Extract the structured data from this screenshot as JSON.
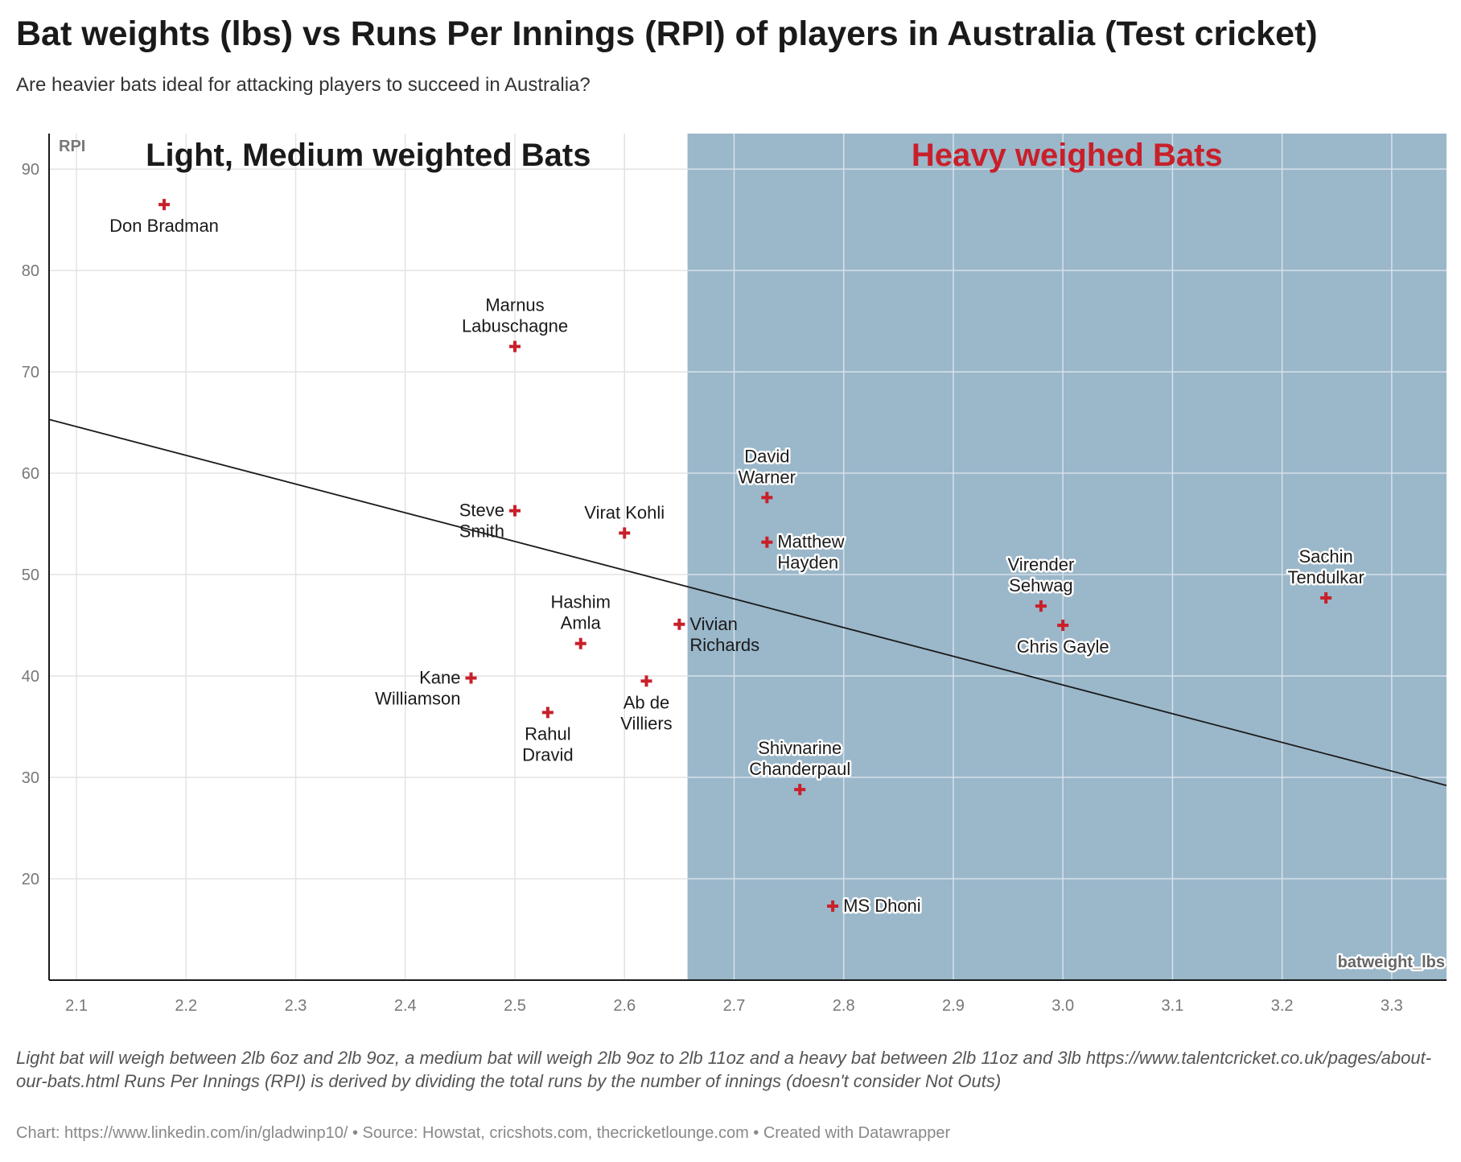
{
  "title": "Bat weights (lbs) vs Runs Per Innings (RPI) of players in Australia (Test cricket)",
  "subtitle": "Are heavier bats ideal for attacking players to succeed in Australia?",
  "notes": "Light bat will weigh between 2lb 6oz and 2lb 9oz, a medium bat will weigh 2lb 9oz to 2lb 11oz and a heavy bat between 2lb 11oz and 3lb https://www.talentcricket.co.uk/pages/about-our-bats.html Runs Per Innings (RPI) is derived by dividing the total runs by the number of innings (doesn't consider Not Outs)",
  "byline": "Chart: https://www.linkedin.com/in/gladwinp10/ • Source: Howstat, cricshots.com, thecricketlounge.com • Created with Datawrapper",
  "colors": {
    "marker": "#c8202a",
    "heavy_region": "#9bb7ca",
    "heavy_label": "#c8202a",
    "light_label": "#1a1a1a",
    "trendline": "#1a1a1a",
    "grid": "#e3e3e3"
  },
  "chart_data": {
    "type": "scatter",
    "xlabel": "batweight_lbs",
    "ylabel": "RPI",
    "xlim": [
      2.075,
      3.35
    ],
    "ylim": [
      10,
      93.5
    ],
    "x_ticks": [
      "2.1",
      "2.2",
      "2.3",
      "2.4",
      "2.5",
      "2.6",
      "2.7",
      "2.8",
      "2.9",
      "3.0",
      "3.1",
      "3.2",
      "3.3"
    ],
    "y_ticks": [
      "20",
      "30",
      "40",
      "50",
      "60",
      "70",
      "80",
      "90"
    ],
    "grid": true,
    "regions": [
      {
        "label": "Light, Medium weighted Bats",
        "x_from": 2.075,
        "x_to": 2.6575,
        "shaded": false
      },
      {
        "label": "Heavy weighed Bats",
        "x_from": 2.6575,
        "x_to": 3.35,
        "shaded": true
      }
    ],
    "trendline": {
      "x": [
        2.075,
        3.35
      ],
      "y": [
        65.3,
        29.2
      ]
    },
    "points": [
      {
        "name": "Don Bradman",
        "x": 2.18,
        "y": 86.5,
        "label_pos": "below"
      },
      {
        "name": "Marnus Labuschagne",
        "x": 2.5,
        "y": 72.5,
        "label_pos": "above"
      },
      {
        "name": "Steve Smith",
        "x": 2.5,
        "y": 56.3,
        "label_pos": "left"
      },
      {
        "name": "Virat Kohli",
        "x": 2.6,
        "y": 54.1,
        "label_pos": "above"
      },
      {
        "name": "Hashim Amla",
        "x": 2.56,
        "y": 43.2,
        "label_pos": "above"
      },
      {
        "name": "Kane Williamson",
        "x": 2.46,
        "y": 39.8,
        "label_pos": "left"
      },
      {
        "name": "Rahul Dravid",
        "x": 2.53,
        "y": 36.4,
        "label_pos": "below"
      },
      {
        "name": "Ab de Villiers",
        "x": 2.62,
        "y": 39.5,
        "label_pos": "below"
      },
      {
        "name": "Vivian Richards",
        "x": 2.65,
        "y": 45.1,
        "label_pos": "right"
      },
      {
        "name": "David Warner",
        "x": 2.73,
        "y": 57.6,
        "label_pos": "above"
      },
      {
        "name": "Matthew Hayden",
        "x": 2.73,
        "y": 53.2,
        "label_pos": "right"
      },
      {
        "name": "Shivnarine Chanderpaul",
        "x": 2.76,
        "y": 28.8,
        "label_pos": "above"
      },
      {
        "name": "MS Dhoni",
        "x": 2.79,
        "y": 17.3,
        "label_pos": "right"
      },
      {
        "name": "Virender Sehwag",
        "x": 2.98,
        "y": 46.9,
        "label_pos": "above"
      },
      {
        "name": "Chris Gayle",
        "x": 3.0,
        "y": 45.0,
        "label_pos": "below"
      },
      {
        "name": "Sachin Tendulkar",
        "x": 3.24,
        "y": 47.7,
        "label_pos": "above"
      }
    ]
  }
}
